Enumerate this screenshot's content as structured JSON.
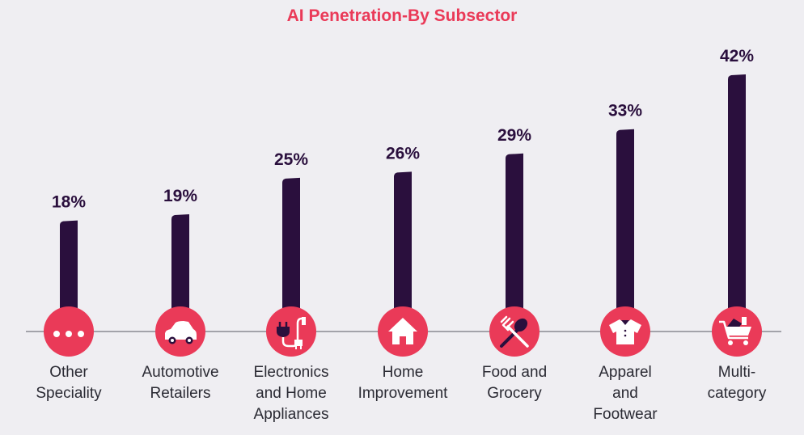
{
  "chart_data": {
    "type": "bar",
    "title": "AI Penetration-By Subsector",
    "categories": [
      "Other\nSpeciality",
      "Automotive\nRetailers",
      "Electronics\nand Home\nAppliances",
      "Home\nImprovement",
      "Food and\nGrocery",
      "Apparel\nand\nFootwear",
      "Multi-\ncategory"
    ],
    "values": [
      18,
      19,
      25,
      26,
      29,
      33,
      42
    ],
    "value_labels": [
      "18%",
      "19%",
      "25%",
      "26%",
      "29%",
      "33%",
      "42%"
    ],
    "icons": [
      "dots-icon",
      "car-icon",
      "plug-icon",
      "house-icon",
      "utensils-icon",
      "shirt-icon",
      "cart-icon"
    ],
    "ylim": [
      0,
      42
    ],
    "grid": false,
    "colors": {
      "bar": "#2a0f3d",
      "icon_circle": "#ea3a58",
      "title": "#ea3a58",
      "baseline": "#8a8a92"
    }
  }
}
